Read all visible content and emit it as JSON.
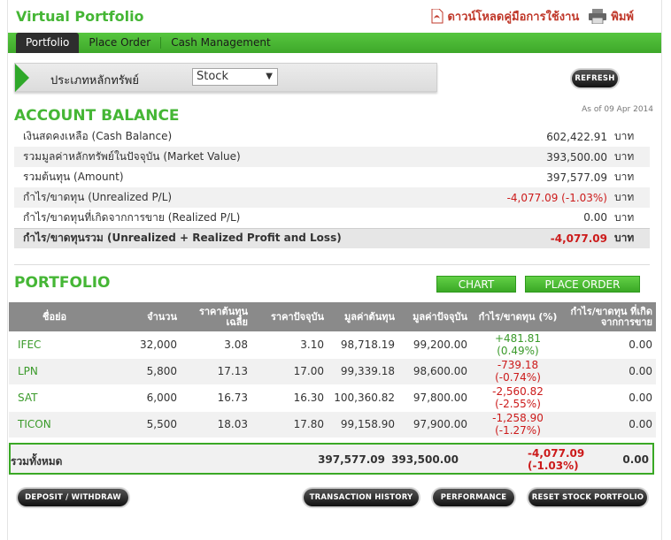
{
  "header": {
    "title": "Virtual Portfolio",
    "download_label": "ดาวน์โหลดคู่มือการใช้งาน",
    "print_label": "พิมพ์"
  },
  "nav": {
    "tabs": [
      "Portfolio",
      "Place Order",
      "Cash Management"
    ],
    "active": "Portfolio"
  },
  "filter": {
    "label": "ประเภทหลักทรัพย์",
    "selected": "Stock"
  },
  "refresh_label": "REFRESH",
  "account": {
    "title": "ACCOUNT BALANCE",
    "as_of": "As of 09 Apr 2014",
    "rows": [
      {
        "label": "เงินสดคงเหลือ (Cash Balance)",
        "value": "602,422.91",
        "unit": "บาท"
      },
      {
        "label": "รวมมูลค่าหลักทรัพย์ในปัจจุบัน (Market Value)",
        "value": "393,500.00",
        "unit": "บาท"
      },
      {
        "label": "รวมต้นทุน (Amount)",
        "value": "397,577.09",
        "unit": "บาท"
      },
      {
        "label": "กำไร/ขาดทุน (Unrealized P/L)",
        "value": "-4,077.09 (-1.03%)",
        "unit": "บาท"
      },
      {
        "label": "กำไร/ขาดทุนที่เกิดจากการขาย (Realized P/L)",
        "value": "0.00",
        "unit": "บาท"
      },
      {
        "label": "กำไร/ขาดทุนรวม (Unrealized + Realized Profit and Loss)",
        "value": "-4,077.09",
        "unit": "บาท"
      }
    ]
  },
  "portfolio": {
    "title": "PORTFOLIO",
    "chart_label": "CHART",
    "place_order_label": "PLACE ORDER",
    "columns": [
      "ชื่อย่อ",
      "จำนวน",
      "ราคาต้นทุนเฉลี่ย",
      "ราคาปัจจุบัน",
      "มูลค่าต้นทุน",
      "มูลค่าปัจจุบัน",
      "กำไร/ขาดทุน (%)",
      "กำไร/ขาดทุน ที่เกิดจากการขาย"
    ],
    "rows": [
      {
        "symbol": "IFEC",
        "qty": "32,000",
        "avg_cost": "3.08",
        "price": "3.10",
        "cost": "98,718.19",
        "market": "99,200.00",
        "pl": "+481.81",
        "pl_pct": "(0.49%)",
        "realized": "0.00"
      },
      {
        "symbol": "LPN",
        "qty": "5,800",
        "avg_cost": "17.13",
        "price": "17.00",
        "cost": "99,339.18",
        "market": "98,600.00",
        "pl": "-739.18",
        "pl_pct": "(-0.74%)",
        "realized": "0.00"
      },
      {
        "symbol": "SAT",
        "qty": "6,000",
        "avg_cost": "16.73",
        "price": "16.30",
        "cost": "100,360.82",
        "market": "97,800.00",
        "pl": "-2,560.82",
        "pl_pct": "(-2.55%)",
        "realized": "0.00"
      },
      {
        "symbol": "TICON",
        "qty": "5,500",
        "avg_cost": "18.03",
        "price": "17.80",
        "cost": "99,158.90",
        "market": "97,900.00",
        "pl": "-1,258.90",
        "pl_pct": "(-1.27%)",
        "realized": "0.00"
      }
    ],
    "total": {
      "label": "รวมทั้งหมด",
      "cost": "397,577.09",
      "market": "393,500.00",
      "pl": "-4,077.09",
      "pl_pct": "(-1.03%)",
      "realized": "0.00"
    }
  },
  "footer": {
    "deposit_label": "DEPOSIT / WITHDRAW",
    "history_label": "TRANSACTION HISTORY",
    "performance_label": "PERFORMANCE",
    "reset_label": "RESET STOCK PORTFOLIO"
  },
  "colors": {
    "brand_green": "#45b635",
    "negative": "#cc1a1a",
    "positive": "#3a9a2a"
  }
}
